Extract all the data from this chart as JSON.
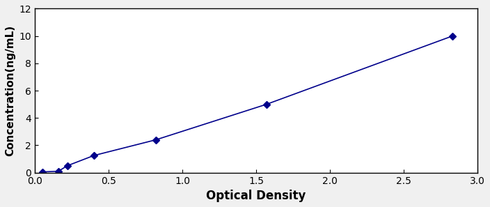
{
  "x": [
    0.05,
    0.16,
    0.22,
    0.4,
    0.82,
    1.57,
    2.83
  ],
  "y": [
    0.05,
    0.1,
    0.5,
    1.25,
    2.4,
    5.0,
    10.0
  ],
  "line_color": "#00008B",
  "marker": "D",
  "marker_size": 5,
  "linewidth": 1.2,
  "xlabel": "Optical Density",
  "ylabel": "Concentration(ng/mL)",
  "xlim": [
    0,
    3.0
  ],
  "ylim": [
    0,
    12
  ],
  "xticks": [
    0,
    0.5,
    1,
    1.5,
    2,
    2.5,
    3
  ],
  "yticks": [
    0,
    2,
    4,
    6,
    8,
    10,
    12
  ],
  "xlabel_fontsize": 12,
  "ylabel_fontsize": 11,
  "tick_fontsize": 10,
  "figure_facecolor": "#f0f0f0",
  "axes_facecolor": "#ffffff"
}
